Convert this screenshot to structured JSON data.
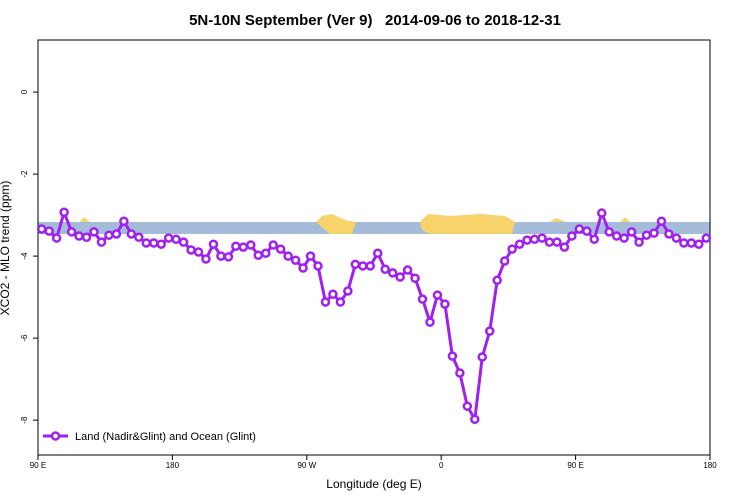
{
  "chart_data": {
    "type": "line",
    "title": "5N-10N September (Ver 9)   2014-09-06 to 2018-12-31",
    "xlabel": "Longitude (deg E)",
    "ylabel": "XCO2 - MLO trend (ppm)",
    "x": [
      92.5,
      97.5,
      102.5,
      107.5,
      112.5,
      117.5,
      122.5,
      127.5,
      132.5,
      137.5,
      142.5,
      147.5,
      152.5,
      157.5,
      162.5,
      167.5,
      172.5,
      177.5,
      182.5,
      187.5,
      192.5,
      197.5,
      202.5,
      207.5,
      212.5,
      217.5,
      222.5,
      227.5,
      232.5,
      237.5,
      242.5,
      247.5,
      252.5,
      257.5,
      262.5,
      267.5,
      272.5,
      277.5,
      282.5,
      287.5,
      292.5,
      297.5,
      302.5,
      307.5,
      312.5,
      317.5,
      322.5,
      327.5,
      332.5,
      337.5,
      342.5,
      347.5,
      352.5,
      357.5,
      362.5,
      367.5,
      372.5,
      377.5,
      382.5,
      387.5,
      392.5,
      397.5,
      402.5,
      407.5,
      412.5,
      417.5,
      422.5,
      427.5,
      432.5,
      437.5,
      442.5,
      447.5,
      452.5,
      457.5,
      462.5,
      467.5,
      472.5,
      477.5,
      482.5,
      487.5,
      492.5,
      497.5,
      502.5,
      507.5,
      512.5,
      517.5,
      522.5,
      527.5,
      532.5,
      537.5
    ],
    "series": [
      {
        "name": "Land (Nadir&Glint) and Ocean (Glint)",
        "color": "#a020f0",
        "values": [
          -3.34,
          -3.39,
          -3.56,
          -2.93,
          -3.41,
          -3.51,
          -3.54,
          -3.41,
          -3.66,
          -3.49,
          -3.46,
          -3.15,
          -3.46,
          -3.54,
          -3.68,
          -3.68,
          -3.71,
          -3.56,
          -3.59,
          -3.66,
          -3.85,
          -3.9,
          -4.07,
          -3.71,
          -4.0,
          -4.02,
          -3.76,
          -3.78,
          -3.73,
          -3.98,
          -3.93,
          -3.73,
          -3.83,
          -4.0,
          -4.1,
          -4.29,
          -4.0,
          -4.24,
          -5.12,
          -4.93,
          -5.12,
          -4.85,
          -4.2,
          -4.24,
          -4.24,
          -3.93,
          -4.32,
          -4.41,
          -4.51,
          -4.34,
          -4.54,
          -5.05,
          -5.61,
          -4.95,
          -5.17,
          -6.44,
          -6.85,
          -7.66,
          -7.98,
          -6.46,
          -5.83,
          -4.59,
          -4.12,
          -3.83,
          -3.71,
          -3.61,
          -3.59,
          -3.56,
          -3.66,
          -3.66,
          -3.78,
          -3.51,
          -3.34,
          -3.39,
          -3.59,
          -2.95,
          -3.41,
          -3.51,
          -3.56,
          -3.41,
          -3.66,
          -3.49,
          -3.44,
          -3.15,
          -3.46,
          -3.56,
          -3.68,
          -3.68,
          -3.71,
          -3.56
        ]
      }
    ],
    "xlim": [
      90,
      540
    ],
    "xticks": [
      {
        "value": 90,
        "label": "90 E"
      },
      {
        "value": 180,
        "label": "180"
      },
      {
        "value": 270,
        "label": "90 W"
      },
      {
        "value": 360,
        "label": "0"
      },
      {
        "value": 450,
        "label": "90 E"
      },
      {
        "value": 540,
        "label": "180"
      }
    ],
    "ylim": [
      -8.85,
      1.27
    ],
    "yticks": [
      0,
      -2,
      -4,
      -6,
      -8
    ],
    "legend": "bottom-left"
  }
}
